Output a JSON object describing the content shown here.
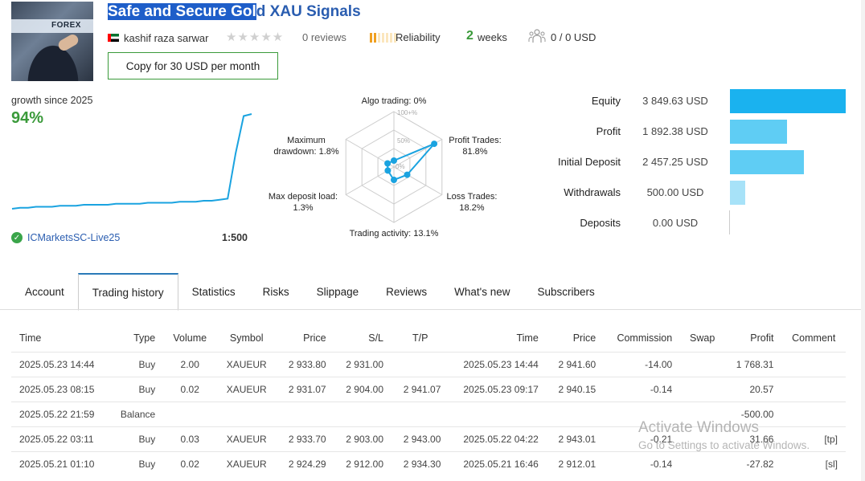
{
  "header": {
    "thumb_text": "FOREX",
    "title_selected": "Safe and Secure Gol",
    "title_rest": "d XAU Signals",
    "author": "kashif raza sarwar",
    "stars": "★★★★★",
    "reviews": "0 reviews",
    "reliability_label": "Reliability",
    "weeks_number": "2",
    "weeks_label": "weeks",
    "subscribers": "0 / 0 USD",
    "copy_button": "Copy for 30 USD per month"
  },
  "growth": {
    "label": "growth since 2025",
    "value": "94%",
    "broker": "ICMarketsSC-Live25",
    "leverage": "1:500",
    "series": [
      0,
      1,
      1,
      2,
      2,
      2,
      3,
      3,
      3,
      4,
      4,
      4,
      4,
      5,
      5,
      5,
      5,
      6,
      6,
      6,
      6,
      7,
      7,
      7,
      8,
      8,
      9,
      10,
      55,
      92,
      94
    ]
  },
  "radar": {
    "tick_100": "100+%",
    "tick_50": "50%",
    "tick_0": "0%",
    "algo": "Algo trading: 0%",
    "profit_l1": "Profit Trades:",
    "profit_l2": "81.8%",
    "loss_l1": "Loss Trades:",
    "loss_l2": "18.2%",
    "activity": "Trading activity: 13.1%",
    "deposit_l1": "Max deposit load:",
    "deposit_l2": "1.3%",
    "drawdown_l1": "Maximum",
    "drawdown_l2": "drawdown: 1.8%",
    "values": [
      0,
      81.8,
      18.2,
      13.1,
      1.3,
      1.8
    ],
    "color": "#1aa3e0"
  },
  "stats": [
    {
      "label": "Equity",
      "value": "3 849.63 USD",
      "amount": 3849.63,
      "color": "#1ab2ef"
    },
    {
      "label": "Profit",
      "value": "1 892.38 USD",
      "amount": 1892.38,
      "color": "#5fcdf4"
    },
    {
      "label": "Initial Deposit",
      "value": "2 457.25 USD",
      "amount": 2457.25,
      "color": "#5fcdf4"
    },
    {
      "label": "Withdrawals",
      "value": "500.00 USD",
      "amount": 500.0,
      "color": "#a7e2f8"
    },
    {
      "label": "Deposits",
      "value": "0.00 USD",
      "amount": 0,
      "color": "#a7e2f8"
    }
  ],
  "tabs": [
    "Account",
    "Trading history",
    "Statistics",
    "Risks",
    "Slippage",
    "Reviews",
    "What's new",
    "Subscribers"
  ],
  "table": {
    "columns": [
      "Time",
      "Type",
      "Volume",
      "Symbol",
      "Price",
      "S/L",
      "T/P",
      "Time",
      "Price",
      "Commission",
      "Swap",
      "Profit",
      "Comment"
    ],
    "rows": [
      [
        "2025.05.23 14:44",
        "Buy",
        "2.00",
        "XAUEUR",
        "2 933.80",
        "2 931.00",
        "",
        "2025.05.23 14:44",
        "2 941.60",
        "-14.00",
        "",
        "1 768.31",
        ""
      ],
      [
        "2025.05.23 08:15",
        "Buy",
        "0.02",
        "XAUEUR",
        "2 931.07",
        "2 904.00",
        "2 941.07",
        "2025.05.23 09:17",
        "2 940.15",
        "-0.14",
        "",
        "20.57",
        ""
      ],
      [
        "2025.05.22 21:59",
        "Balance",
        "",
        "",
        "",
        "",
        "",
        "",
        "",
        "",
        "",
        "-500.00",
        ""
      ],
      [
        "2025.05.22 03:11",
        "Buy",
        "0.03",
        "XAUEUR",
        "2 933.70",
        "2 903.00",
        "2 943.00",
        "2025.05.22 04:22",
        "2 943.01",
        "-0.21",
        "",
        "31.66",
        "[tp]"
      ],
      [
        "2025.05.21 01:10",
        "Buy",
        "0.02",
        "XAUEUR",
        "2 924.29",
        "2 912.00",
        "2 934.30",
        "2025.05.21 16:46",
        "2 912.01",
        "-0.14",
        "",
        "-27.82",
        "[sl]"
      ]
    ]
  },
  "watermark": {
    "line1": "Activate Windows",
    "line2": "Go to Settings to activate Windows."
  }
}
